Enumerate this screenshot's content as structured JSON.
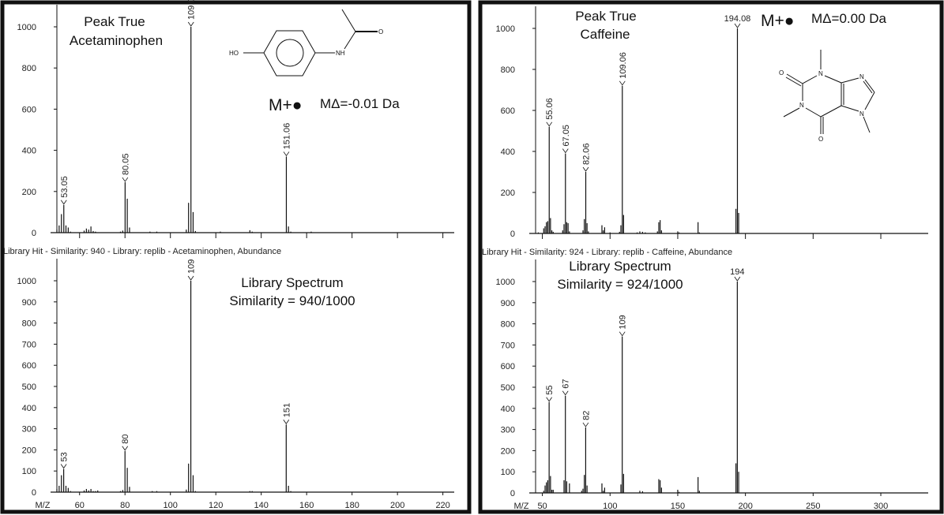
{
  "panels": [
    {
      "compound": "Acetaminophen",
      "sample_title": [
        "Peak True",
        "Acetaminophen"
      ],
      "molecular_ion": "M+●",
      "mass_error": "MΔ=-0.01 Da",
      "library_hit": "Library Hit - Similarity: 940 - Library: replib - Acetaminophen, Abundance",
      "library_title": [
        "Library Spectrum",
        "Similarity = 940/1000"
      ],
      "structure_atoms": [
        "HO",
        "NH",
        "O"
      ]
    },
    {
      "compound": "Caffeine",
      "sample_title": [
        "Peak True",
        "Caffeine"
      ],
      "molecular_ion": "M+●",
      "mass_error": "MΔ=0.00 Da",
      "library_hit": "Library Hit - Similarity: 924 - Library: replib - Caffeine, Abundance",
      "library_title": [
        "Library Spectrum",
        "Similarity = 924/1000"
      ],
      "structure_atoms": [
        "O",
        "N",
        "N",
        "N",
        "N",
        "O"
      ]
    }
  ],
  "chart_data": [
    {
      "type": "bar",
      "name": "Acetaminophen sample spectrum",
      "xlabel": "",
      "ylabel": "",
      "xlim": [
        50,
        225
      ],
      "ylim": [
        0,
        1000
      ],
      "yticks": [
        0,
        200,
        400,
        600,
        800,
        1000
      ],
      "xticks": [
        60,
        80,
        100,
        120,
        140,
        160,
        180,
        200,
        220
      ],
      "xtick_labels_shown": false,
      "peaks": [
        [
          50,
          15
        ],
        [
          51,
          35
        ],
        [
          52,
          90
        ],
        [
          53.05,
          135
        ],
        [
          54,
          35
        ],
        [
          55,
          25
        ],
        [
          56,
          5
        ],
        [
          62,
          10
        ],
        [
          63,
          20
        ],
        [
          64,
          15
        ],
        [
          65,
          30
        ],
        [
          66,
          8
        ],
        [
          67,
          5
        ],
        [
          78,
          5
        ],
        [
          79,
          10
        ],
        [
          80.05,
          245
        ],
        [
          81,
          165
        ],
        [
          82,
          25
        ],
        [
          91,
          5
        ],
        [
          94,
          5
        ],
        [
          107,
          15
        ],
        [
          108,
          145
        ],
        [
          109.05,
          1000
        ],
        [
          110,
          100
        ],
        [
          111,
          8
        ],
        [
          122,
          5
        ],
        [
          135,
          12
        ],
        [
          136,
          5
        ],
        [
          151.06,
          370
        ],
        [
          152,
          30
        ],
        [
          153,
          5
        ],
        [
          162,
          5
        ]
      ],
      "labeled": [
        {
          "x": 53.05,
          "y": 135,
          "label": "53.05"
        },
        {
          "x": 80.05,
          "y": 245,
          "label": "80.05"
        },
        {
          "x": 109.05,
          "y": 1000,
          "label": "109.05"
        },
        {
          "x": 151.06,
          "y": 370,
          "label": "151.06"
        }
      ]
    },
    {
      "type": "bar",
      "name": "Acetaminophen library spectrum",
      "xlabel": "M/Z",
      "ylabel": "",
      "xlim": [
        50,
        225
      ],
      "ylim": [
        0,
        1000
      ],
      "yticks": [
        0,
        100,
        200,
        300,
        400,
        500,
        600,
        700,
        800,
        900,
        1000
      ],
      "xticks": [
        60,
        80,
        100,
        120,
        140,
        160,
        180,
        200,
        220
      ],
      "xtick_labels_shown": true,
      "peaks": [
        [
          50,
          15
        ],
        [
          51,
          30
        ],
        [
          52,
          80
        ],
        [
          53,
          110
        ],
        [
          54,
          30
        ],
        [
          55,
          20
        ],
        [
          56,
          5
        ],
        [
          62,
          8
        ],
        [
          63,
          15
        ],
        [
          64,
          8
        ],
        [
          65,
          15
        ],
        [
          66,
          5
        ],
        [
          67,
          5
        ],
        [
          68,
          8
        ],
        [
          78,
          5
        ],
        [
          79,
          10
        ],
        [
          80,
          195
        ],
        [
          81,
          115
        ],
        [
          82,
          25
        ],
        [
          92,
          5
        ],
        [
          94,
          5
        ],
        [
          107,
          12
        ],
        [
          108,
          135
        ],
        [
          109,
          1000
        ],
        [
          110,
          80
        ],
        [
          111,
          5
        ],
        [
          135,
          5
        ],
        [
          136,
          5
        ],
        [
          151,
          320
        ],
        [
          152,
          30
        ],
        [
          153,
          5
        ]
      ],
      "labeled": [
        {
          "x": 53,
          "y": 110,
          "label": "53"
        },
        {
          "x": 80,
          "y": 195,
          "label": "80"
        },
        {
          "x": 109,
          "y": 1000,
          "label": "109"
        },
        {
          "x": 151,
          "y": 320,
          "label": "151"
        }
      ]
    },
    {
      "type": "bar",
      "name": "Caffeine sample spectrum",
      "xlabel": "",
      "ylabel": "",
      "xlim": [
        45,
        335
      ],
      "ylim": [
        0,
        1000
      ],
      "yticks": [
        0,
        200,
        400,
        600,
        800,
        1000
      ],
      "xticks": [
        50,
        100,
        150,
        200,
        250,
        300
      ],
      "xtick_labels_shown": false,
      "peaks": [
        [
          47,
          5
        ],
        [
          51,
          25
        ],
        [
          52,
          35
        ],
        [
          53,
          55
        ],
        [
          54,
          60
        ],
        [
          55.06,
          520
        ],
        [
          56,
          75
        ],
        [
          57,
          15
        ],
        [
          58,
          8
        ],
        [
          65,
          15
        ],
        [
          66,
          45
        ],
        [
          67.05,
          390
        ],
        [
          68,
          55
        ],
        [
          69,
          50
        ],
        [
          70,
          10
        ],
        [
          80,
          15
        ],
        [
          81,
          70
        ],
        [
          82.06,
          300
        ],
        [
          83,
          50
        ],
        [
          84,
          10
        ],
        [
          94,
          40
        ],
        [
          95,
          15
        ],
        [
          96,
          30
        ],
        [
          100,
          5
        ],
        [
          107,
          8
        ],
        [
          108,
          40
        ],
        [
          109.06,
          720
        ],
        [
          110,
          90
        ],
        [
          120,
          5
        ],
        [
          122,
          10
        ],
        [
          124,
          8
        ],
        [
          126,
          5
        ],
        [
          135,
          10
        ],
        [
          136,
          55
        ],
        [
          137,
          65
        ],
        [
          138,
          15
        ],
        [
          150,
          10
        ],
        [
          151,
          5
        ],
        [
          165,
          55
        ],
        [
          166,
          5
        ],
        [
          193,
          120
        ],
        [
          194.08,
          1000
        ],
        [
          195,
          100
        ]
      ],
      "labeled": [
        {
          "x": 55.06,
          "y": 520,
          "label": "55.06"
        },
        {
          "x": 67.05,
          "y": 390,
          "label": "67.05"
        },
        {
          "x": 82.06,
          "y": 300,
          "label": "82.06"
        },
        {
          "x": 109.06,
          "y": 720,
          "label": "109.06"
        },
        {
          "x": 194.08,
          "y": 1000,
          "label": "194.08",
          "horizontal": true
        }
      ]
    },
    {
      "type": "bar",
      "name": "Caffeine library spectrum",
      "xlabel": "M/Z",
      "ylabel": "",
      "xlim": [
        45,
        335
      ],
      "ylim": [
        0,
        1000
      ],
      "yticks": [
        0,
        100,
        200,
        300,
        400,
        500,
        600,
        700,
        800,
        900,
        1000
      ],
      "xticks": [
        50,
        100,
        150,
        200,
        250,
        300
      ],
      "xtick_labels_shown": true,
      "peaks": [
        [
          51,
          10
        ],
        [
          52,
          35
        ],
        [
          53,
          50
        ],
        [
          54,
          60
        ],
        [
          55,
          430
        ],
        [
          56,
          80
        ],
        [
          57,
          15
        ],
        [
          58,
          15
        ],
        [
          66,
          60
        ],
        [
          67,
          460
        ],
        [
          68,
          55
        ],
        [
          70,
          45
        ],
        [
          79,
          10
        ],
        [
          80,
          20
        ],
        [
          81,
          85
        ],
        [
          82,
          310
        ],
        [
          83,
          35
        ],
        [
          94,
          45
        ],
        [
          95,
          10
        ],
        [
          96,
          25
        ],
        [
          108,
          40
        ],
        [
          109,
          740
        ],
        [
          110,
          90
        ],
        [
          122,
          10
        ],
        [
          124,
          8
        ],
        [
          136,
          65
        ],
        [
          137,
          60
        ],
        [
          138,
          25
        ],
        [
          150,
          15
        ],
        [
          151,
          5
        ],
        [
          165,
          75
        ],
        [
          166,
          10
        ],
        [
          193,
          140
        ],
        [
          194,
          1000
        ],
        [
          195,
          100
        ]
      ],
      "labeled": [
        {
          "x": 55,
          "y": 430,
          "label": "55"
        },
        {
          "x": 67,
          "y": 460,
          "label": "67"
        },
        {
          "x": 82,
          "y": 310,
          "label": "82"
        },
        {
          "x": 109,
          "y": 740,
          "label": "109"
        },
        {
          "x": 194,
          "y": 1000,
          "label": "194",
          "horizontal": true
        }
      ]
    }
  ]
}
